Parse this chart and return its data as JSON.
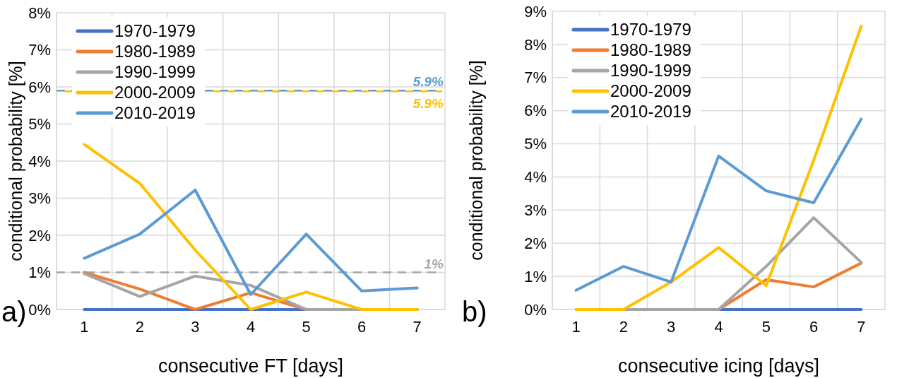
{
  "chart_data": [
    {
      "type": "line",
      "xlabel": "consecutive FT [days]",
      "ylabel": "conditional probability [%]",
      "categories": [
        "1",
        "2",
        "3",
        "4",
        "5",
        "6",
        "7"
      ],
      "series": [
        {
          "name": "1970-1979",
          "color": "#4472c4",
          "values": [
            0,
            0,
            0,
            0,
            0,
            0,
            0
          ]
        },
        {
          "name": "1980-1989",
          "color": "#ed7d31",
          "values": [
            1.0,
            0.55,
            0,
            0.45,
            0,
            0,
            0
          ]
        },
        {
          "name": "1990-1999",
          "color": "#a5a5a5",
          "values": [
            0.97,
            0.35,
            0.9,
            0.65,
            0,
            0,
            0
          ]
        },
        {
          "name": "2000-2009",
          "color": "#ffc000",
          "values": [
            4.45,
            3.4,
            1.6,
            0,
            0.47,
            0,
            0
          ]
        },
        {
          "name": "2010-2019",
          "color": "#5b9bd5",
          "values": [
            1.38,
            2.03,
            3.22,
            0.4,
            2.03,
            0.5,
            0.58
          ]
        }
      ],
      "ylim": [
        0,
        8
      ],
      "yticks": [
        {
          "value": 0,
          "label": "0%"
        },
        {
          "value": 1,
          "label": "1%"
        },
        {
          "value": 2,
          "label": "2%"
        },
        {
          "value": 3,
          "label": "3%"
        },
        {
          "value": 4,
          "label": "4%"
        },
        {
          "value": 5,
          "label": "5%"
        },
        {
          "value": 6,
          "label": "6%"
        },
        {
          "value": 7,
          "label": "7%"
        },
        {
          "value": 8,
          "label": "8%"
        }
      ],
      "ref_lines": [
        {
          "axis": "y",
          "value": 1,
          "label": "1%",
          "color": "#a5a5a5",
          "line_style": "dashed"
        },
        {
          "axis": "y",
          "value": 5.9,
          "label": "5.9%",
          "color": "#5b9bd5",
          "line_style": "dashed"
        },
        {
          "axis": "y",
          "value": 5.9,
          "label": "5.9%",
          "color": "#ffc000",
          "line_style": "dashed"
        }
      ],
      "grid": true,
      "legend": "top left",
      "annotations": [
        "a)"
      ]
    },
    {
      "type": "line",
      "xlabel": "consecutive icing [days]",
      "ylabel": "conditional probability [%]",
      "categories": [
        "1",
        "2",
        "3",
        "4",
        "5",
        "6",
        "7"
      ],
      "series": [
        {
          "name": "1970-1979",
          "color": "#4472c4",
          "values": [
            null,
            null,
            0,
            0,
            0,
            0,
            0
          ]
        },
        {
          "name": "1980-1989",
          "color": "#ed7d31",
          "values": [
            null,
            null,
            0,
            0,
            0.9,
            0.68,
            1.4
          ]
        },
        {
          "name": "1990-1999",
          "color": "#a5a5a5",
          "values": [
            0,
            0,
            0,
            0,
            1.3,
            2.77,
            1.42
          ]
        },
        {
          "name": "2000-2009",
          "color": "#ffc000",
          "values": [
            0,
            0,
            0.83,
            1.87,
            0.72,
            4.5,
            8.55
          ]
        },
        {
          "name": "2010-2019",
          "color": "#5b9bd5",
          "values": [
            0.58,
            1.3,
            0.83,
            4.63,
            3.58,
            3.22,
            5.75
          ]
        }
      ],
      "ylim": [
        0,
        9
      ],
      "yticks": [
        {
          "value": 0,
          "label": "0%"
        },
        {
          "value": 1,
          "label": "1%"
        },
        {
          "value": 2,
          "label": "2%"
        },
        {
          "value": 3,
          "label": "3%"
        },
        {
          "value": 4,
          "label": "4%"
        },
        {
          "value": 5,
          "label": "5%"
        },
        {
          "value": 6,
          "label": "6%"
        },
        {
          "value": 7,
          "label": "7%"
        },
        {
          "value": 8,
          "label": "8%"
        },
        {
          "value": 9,
          "label": "9%"
        }
      ],
      "grid": true,
      "legend": "top left",
      "annotations": [
        "b)"
      ]
    }
  ]
}
